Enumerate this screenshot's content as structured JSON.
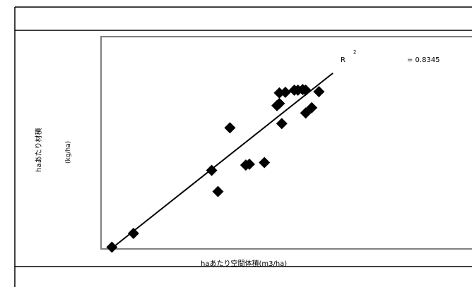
{
  "chart_data": {
    "type": "scatter",
    "title": "",
    "xlabel": "haあたり空間体積(m3/ha)",
    "ylabel": "haあたり材積",
    "ylabel_unit": "(kg/ha)",
    "xlim": [
      0,
      100
    ],
    "ylim": [
      0,
      100
    ],
    "grid": false,
    "points": [
      {
        "x": 1.5,
        "y": 0.5
      },
      {
        "x": 8.7,
        "y": 7.0
      },
      {
        "x": 34.8,
        "y": 36.8
      },
      {
        "x": 36.9,
        "y": 26.8
      },
      {
        "x": 40.9,
        "y": 56.9
      },
      {
        "x": 46.2,
        "y": 39.3
      },
      {
        "x": 47.4,
        "y": 39.7
      },
      {
        "x": 52.4,
        "y": 40.5
      },
      {
        "x": 58.2,
        "y": 58.9
      },
      {
        "x": 56.6,
        "y": 67.4
      },
      {
        "x": 57.4,
        "y": 68.4
      },
      {
        "x": 57.4,
        "y": 73.4
      },
      {
        "x": 59.4,
        "y": 73.7
      },
      {
        "x": 62.4,
        "y": 74.7
      },
      {
        "x": 63.6,
        "y": 74.7
      },
      {
        "x": 65.2,
        "y": 75.0
      },
      {
        "x": 66.2,
        "y": 74.7
      },
      {
        "x": 66.2,
        "y": 63.9
      },
      {
        "x": 68.2,
        "y": 66.4
      },
      {
        "x": 70.6,
        "y": 74.0
      }
    ],
    "trendline": {
      "x": [
        1.5,
        75.3
      ],
      "y": [
        0.0,
        82.8
      ]
    },
    "annotations": {
      "r2_label": "R",
      "r2_exponent": "2",
      "r2_value": "= 0.8345"
    },
    "colors": {
      "marker": "#000000",
      "trendline": "#000000",
      "plot_border": "#808080",
      "frame": "#000000"
    }
  }
}
